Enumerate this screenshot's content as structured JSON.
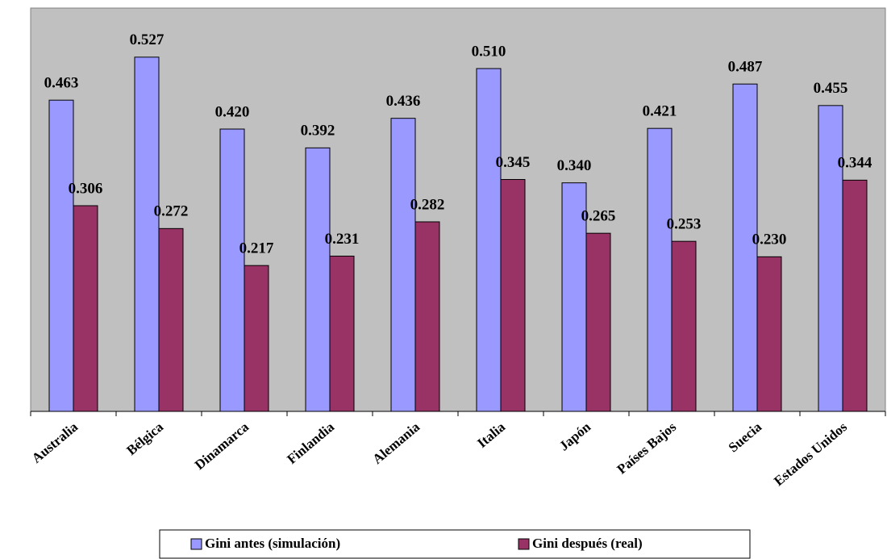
{
  "chart_data": {
    "type": "bar",
    "categories": [
      "Australia",
      "Bélgica",
      "Dinamarca",
      "Finlandia",
      "Alemania",
      "Italia",
      "Japón",
      "Países Bajos",
      "Suecia",
      "Estados Unidos"
    ],
    "series": [
      {
        "name": "Gini antes (simulación)",
        "color": "#9999ff",
        "values": [
          0.463,
          0.527,
          0.42,
          0.392,
          0.436,
          0.51,
          0.34,
          0.421,
          0.487,
          0.455
        ],
        "value_labels": [
          "0.463",
          "0.527",
          "0.420",
          "0.392",
          "0.436",
          "0.510",
          "0.340",
          "0.421",
          "0.487",
          "0.455"
        ]
      },
      {
        "name": "Gini después (real)",
        "color": "#993366",
        "values": [
          0.306,
          0.272,
          0.217,
          0.231,
          0.282,
          0.345,
          0.265,
          0.253,
          0.23,
          0.344
        ],
        "value_labels": [
          "0.306",
          "0.272",
          "0.217",
          "0.231",
          "0.282",
          "0.345",
          "0.265",
          "0.253",
          "0.230",
          "0.344"
        ]
      }
    ],
    "ylim": [
      0,
      0.6
    ],
    "background": "#c0c0c0"
  }
}
